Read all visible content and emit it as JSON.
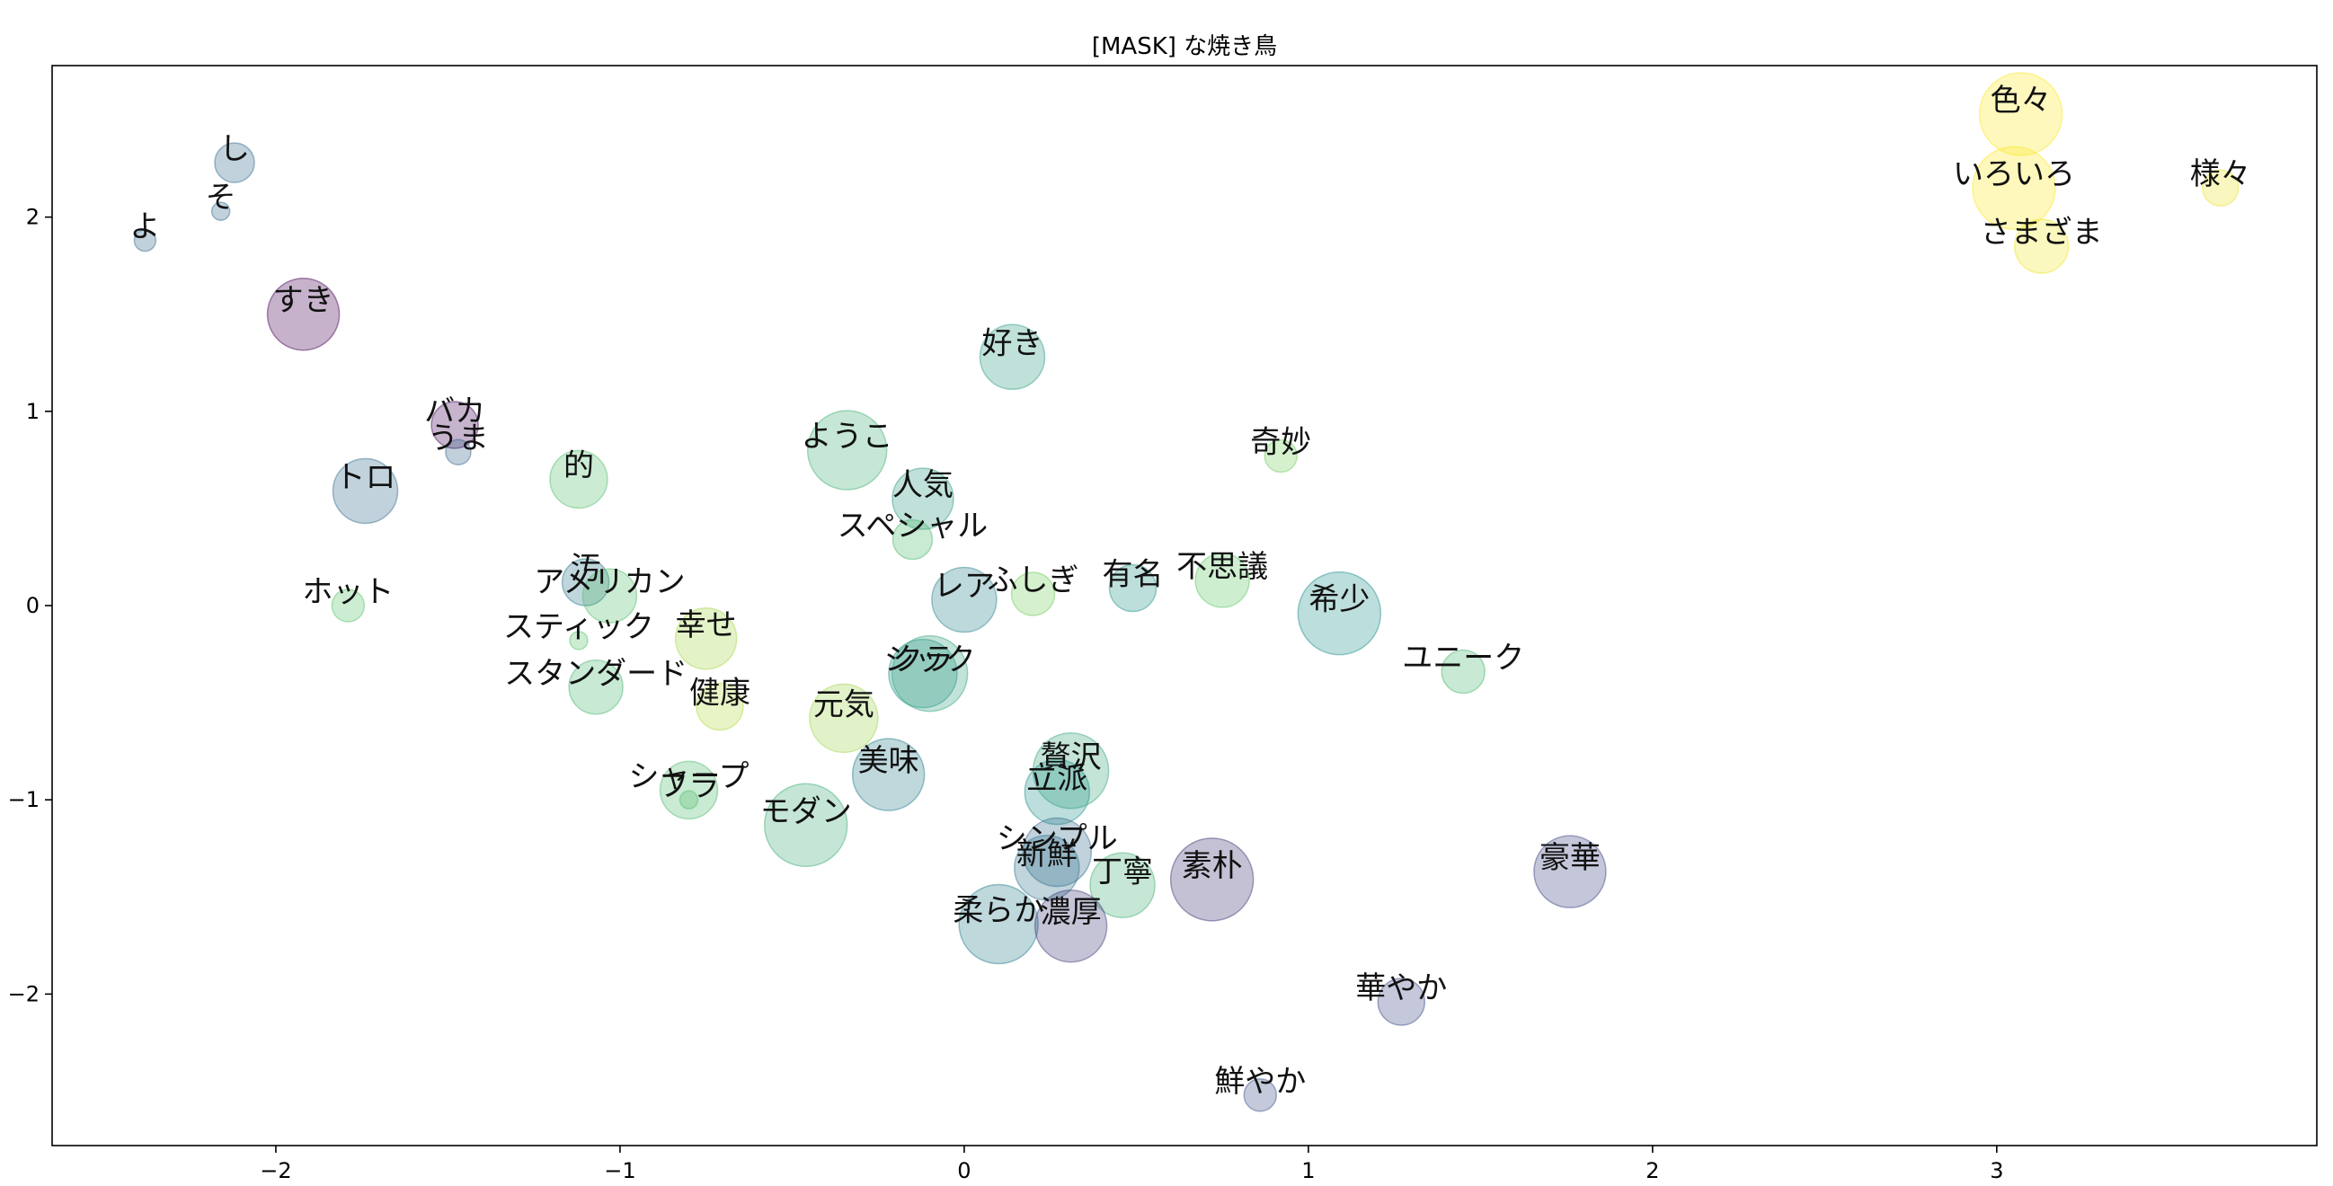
{
  "chart_data": {
    "type": "scatter",
    "title": "[MASK] な焼き鳥",
    "xlabel": "",
    "ylabel": "",
    "xlim": [
      -2.65,
      3.93
    ],
    "ylim": [
      -2.78,
      2.78
    ],
    "xticks": [
      -2,
      -1,
      0,
      1,
      2,
      3
    ],
    "yticks": [
      -2,
      -1,
      0,
      1,
      2
    ],
    "x_tick_labels": [
      "−2",
      "−1",
      "0",
      "1",
      "2",
      "3"
    ],
    "y_tick_labels": [
      "−2",
      "−1",
      "0",
      "1",
      "2"
    ],
    "grid": false,
    "colormap": [
      "#440154",
      "#3b528b",
      "#21918c",
      "#5ec962",
      "#fde725"
    ],
    "marker_alpha": 0.3,
    "points": [
      {
        "label": "色々",
        "x": 3.07,
        "y": 2.53,
        "size": 46,
        "c": 1.0
      },
      {
        "label": "いろいろ",
        "x": 3.05,
        "y": 2.15,
        "size": 46,
        "c": 1.0
      },
      {
        "label": "さまざま",
        "x": 3.13,
        "y": 1.85,
        "size": 30,
        "c": 0.98
      },
      {
        "label": "様々",
        "x": 3.65,
        "y": 2.15,
        "size": 20,
        "c": 0.97
      },
      {
        "label": "し",
        "x": -2.12,
        "y": 2.28,
        "size": 22,
        "c": 0.35
      },
      {
        "label": "そ",
        "x": -2.16,
        "y": 2.03,
        "size": 10,
        "c": 0.35
      },
      {
        "label": "よ",
        "x": -2.38,
        "y": 1.88,
        "size": 12,
        "c": 0.33
      },
      {
        "label": "すき",
        "x": -1.92,
        "y": 1.5,
        "size": 40,
        "c": 0.0
      },
      {
        "label": "バカ",
        "x": -1.48,
        "y": 0.93,
        "size": 26,
        "c": 0.02
      },
      {
        "label": "うま",
        "x": -1.47,
        "y": 0.79,
        "size": 14,
        "c": 0.32
      },
      {
        "label": "トロ",
        "x": -1.74,
        "y": 0.59,
        "size": 36,
        "c": 0.34
      },
      {
        "label": "的",
        "x": -1.12,
        "y": 0.65,
        "size": 32,
        "c": 0.7
      },
      {
        "label": "ホット",
        "x": -1.79,
        "y": 0.0,
        "size": 18,
        "c": 0.72
      },
      {
        "label": "汚",
        "x": -1.1,
        "y": 0.12,
        "size": 26,
        "c": 0.4
      },
      {
        "label": "アメリカン",
        "x": -1.03,
        "y": 0.05,
        "size": 30,
        "c": 0.7
      },
      {
        "label": "スティック",
        "x": -1.12,
        "y": -0.18,
        "size": 10,
        "c": 0.72
      },
      {
        "label": "幸せ",
        "x": -0.75,
        "y": -0.17,
        "size": 34,
        "c": 0.86
      },
      {
        "label": "スタンダード",
        "x": -1.07,
        "y": -0.42,
        "size": 30,
        "c": 0.66
      },
      {
        "label": "健康",
        "x": -0.71,
        "y": -0.52,
        "size": 26,
        "c": 0.88
      },
      {
        "label": "元気",
        "x": -0.35,
        "y": -0.58,
        "size": 38,
        "c": 0.85
      },
      {
        "label": "シャープ",
        "x": -0.8,
        "y": -0.95,
        "size": 32,
        "c": 0.68
      },
      {
        "label": "フラ",
        "x": -0.8,
        "y": -1.0,
        "size": 10,
        "c": 0.7
      },
      {
        "label": "モダン",
        "x": -0.46,
        "y": -1.13,
        "size": 46,
        "c": 0.62
      },
      {
        "label": "美味",
        "x": -0.22,
        "y": -0.87,
        "size": 40,
        "c": 0.42
      },
      {
        "label": "ようこ",
        "x": -0.34,
        "y": 0.8,
        "size": 44,
        "c": 0.64
      },
      {
        "label": "人気",
        "x": -0.12,
        "y": 0.55,
        "size": 34,
        "c": 0.55
      },
      {
        "label": "スペシャル",
        "x": -0.15,
        "y": 0.34,
        "size": 22,
        "c": 0.68
      },
      {
        "label": "好き",
        "x": 0.14,
        "y": 1.28,
        "size": 36,
        "c": 0.55
      },
      {
        "label": "レア",
        "x": 0.0,
        "y": 0.03,
        "size": 36,
        "c": 0.44
      },
      {
        "label": "ふしぎ",
        "x": 0.2,
        "y": 0.06,
        "size": 24,
        "c": 0.78
      },
      {
        "label": "クラ",
        "x": -0.12,
        "y": -0.35,
        "size": 38,
        "c": 0.5
      },
      {
        "label": "シック",
        "x": -0.1,
        "y": -0.35,
        "size": 42,
        "c": 0.58
      },
      {
        "label": "有名",
        "x": 0.49,
        "y": 0.09,
        "size": 26,
        "c": 0.52
      },
      {
        "label": "不思議",
        "x": 0.75,
        "y": 0.13,
        "size": 30,
        "c": 0.74
      },
      {
        "label": "奇妙",
        "x": 0.92,
        "y": 0.77,
        "size": 18,
        "c": 0.78
      },
      {
        "label": "希少",
        "x": 1.09,
        "y": -0.04,
        "size": 46,
        "c": 0.5
      },
      {
        "label": "ユニーク",
        "x": 1.45,
        "y": -0.34,
        "size": 24,
        "c": 0.66
      },
      {
        "label": "贅沢",
        "x": 0.31,
        "y": -0.85,
        "size": 42,
        "c": 0.6
      },
      {
        "label": "立派",
        "x": 0.27,
        "y": -0.96,
        "size": 36,
        "c": 0.5
      },
      {
        "label": "シンプル",
        "x": 0.27,
        "y": -1.27,
        "size": 38,
        "c": 0.34
      },
      {
        "label": "新鮮",
        "x": 0.24,
        "y": -1.35,
        "size": 36,
        "c": 0.38
      },
      {
        "label": "丁寧",
        "x": 0.46,
        "y": -1.44,
        "size": 36,
        "c": 0.64
      },
      {
        "label": "素朴",
        "x": 0.72,
        "y": -1.41,
        "size": 46,
        "c": 0.15
      },
      {
        "label": "柔らか",
        "x": 0.1,
        "y": -1.64,
        "size": 44,
        "c": 0.42
      },
      {
        "label": "濃厚",
        "x": 0.31,
        "y": -1.65,
        "size": 40,
        "c": 0.18
      },
      {
        "label": "豪華",
        "x": 1.76,
        "y": -1.37,
        "size": 40,
        "c": 0.2
      },
      {
        "label": "華やか",
        "x": 1.27,
        "y": -2.04,
        "size": 26,
        "c": 0.22
      },
      {
        "label": "鮮やか",
        "x": 0.86,
        "y": -2.52,
        "size": 18,
        "c": 0.24
      }
    ]
  }
}
